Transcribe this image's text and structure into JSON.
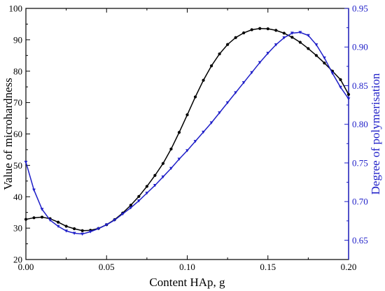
{
  "chart_data": {
    "type": "line",
    "xlabel": "Content HAp, g",
    "ylabel": "Value of microhardness",
    "ylabel_right": "Degree of polymerisation",
    "xlim": [
      0,
      0.2
    ],
    "ylim": [
      20,
      100
    ],
    "ylim_right": [
      0.625,
      0.95
    ],
    "x_ticks": [
      "0.00",
      "0.05",
      "0.10",
      "0.15",
      "0.20"
    ],
    "y_ticks": [
      "20",
      "30",
      "40",
      "50",
      "60",
      "70",
      "80",
      "90",
      "100"
    ],
    "y_ticks_right": [
      "0.65",
      "0.70",
      "0.75",
      "0.80",
      "0.85",
      "0.90",
      "0.95"
    ],
    "grid": false,
    "series": [
      {
        "axis": "left",
        "color": "#000000",
        "marker": "circle",
        "x": [
          0.0,
          0.005,
          0.01,
          0.015,
          0.02,
          0.025,
          0.03,
          0.035,
          0.04,
          0.045,
          0.05,
          0.055,
          0.06,
          0.065,
          0.07,
          0.075,
          0.08,
          0.085,
          0.09,
          0.095,
          0.1,
          0.105,
          0.11,
          0.115,
          0.12,
          0.125,
          0.13,
          0.135,
          0.14,
          0.145,
          0.15,
          0.155,
          0.16,
          0.165,
          0.17,
          0.175,
          0.18,
          0.185,
          0.19,
          0.195,
          0.2
        ],
        "values": [
          32.8,
          33.3,
          33.5,
          33.0,
          31.9,
          30.6,
          29.8,
          29.2,
          29.3,
          29.9,
          31.1,
          32.7,
          34.8,
          37.3,
          40.1,
          43.3,
          46.8,
          50.6,
          55.2,
          60.5,
          66.1,
          71.8,
          77.1,
          81.7,
          85.5,
          88.5,
          90.7,
          92.2,
          93.2,
          93.6,
          93.5,
          93.0,
          92.1,
          90.8,
          89.2,
          87.2,
          85.0,
          82.6,
          80.0,
          77.3,
          72.6
        ]
      },
      {
        "axis": "right",
        "color": "#1f1fc8",
        "marker": "triangle",
        "x": [
          0.0,
          0.005,
          0.01,
          0.015,
          0.02,
          0.025,
          0.03,
          0.035,
          0.04,
          0.045,
          0.05,
          0.055,
          0.06,
          0.065,
          0.07,
          0.075,
          0.08,
          0.085,
          0.09,
          0.095,
          0.1,
          0.105,
          0.11,
          0.115,
          0.12,
          0.125,
          0.13,
          0.135,
          0.14,
          0.145,
          0.15,
          0.155,
          0.16,
          0.165,
          0.17,
          0.175,
          0.18,
          0.185,
          0.19,
          0.195,
          0.2
        ],
        "values": [
          0.751,
          0.715,
          0.69,
          0.676,
          0.668,
          0.662,
          0.659,
          0.658,
          0.661,
          0.665,
          0.67,
          0.676,
          0.684,
          0.692,
          0.701,
          0.711,
          0.721,
          0.732,
          0.743,
          0.755,
          0.766,
          0.778,
          0.79,
          0.802,
          0.815,
          0.828,
          0.841,
          0.854,
          0.867,
          0.88,
          0.892,
          0.903,
          0.912,
          0.918,
          0.919,
          0.915,
          0.903,
          0.886,
          0.866,
          0.848,
          0.833
        ]
      }
    ]
  }
}
